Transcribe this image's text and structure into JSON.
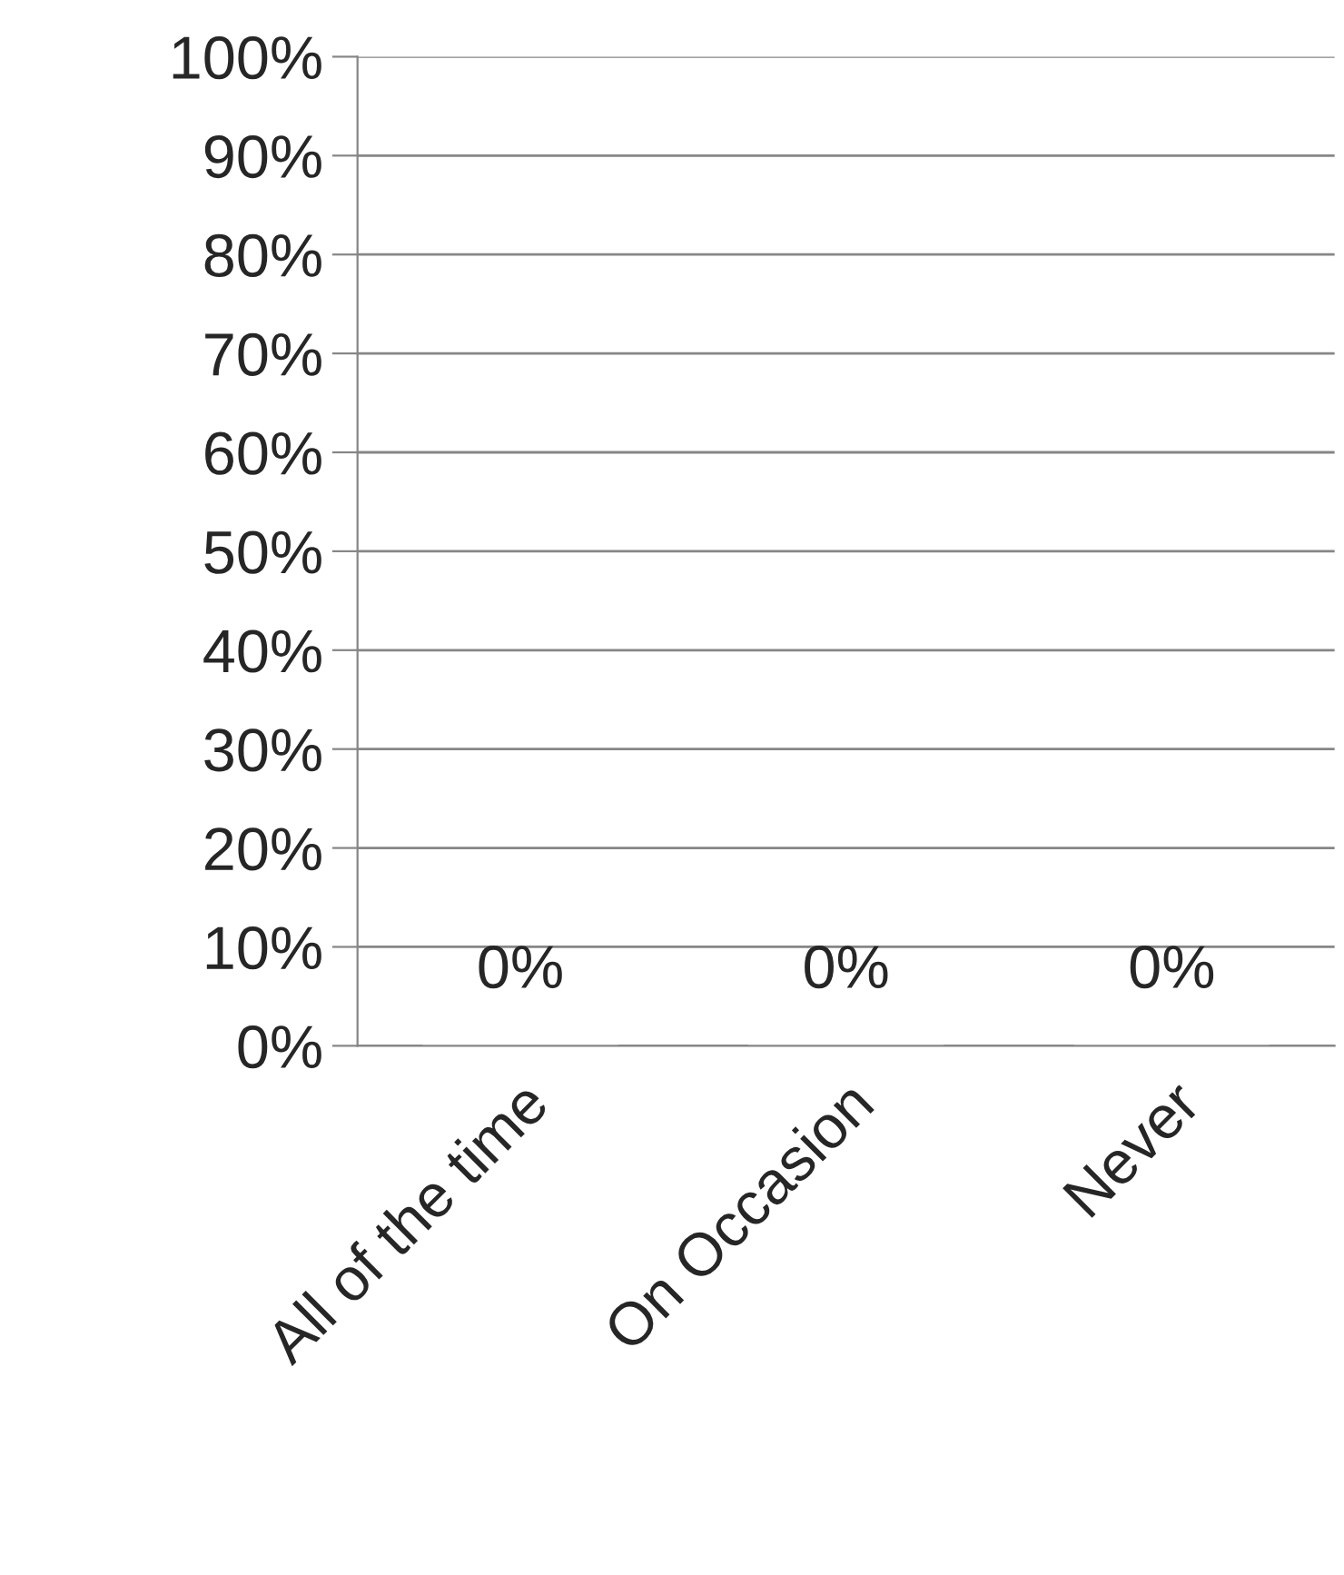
{
  "chart_data": {
    "type": "bar",
    "categories": [
      "All of the time",
      "On Occasion",
      "Never"
    ],
    "values": [
      0,
      0,
      0
    ],
    "value_labels": [
      "0%",
      "0%",
      "0%"
    ],
    "ylim": [
      0,
      100
    ],
    "yticks": [
      {
        "value": 0,
        "label": "0%"
      },
      {
        "value": 10,
        "label": "10%"
      },
      {
        "value": 20,
        "label": "20%"
      },
      {
        "value": 30,
        "label": "30%"
      },
      {
        "value": 40,
        "label": "40%"
      },
      {
        "value": 50,
        "label": "50%"
      },
      {
        "value": 60,
        "label": "60%"
      },
      {
        "value": 70,
        "label": "70%"
      },
      {
        "value": 80,
        "label": "80%"
      },
      {
        "value": 90,
        "label": "90%"
      },
      {
        "value": 100,
        "label": "100%"
      }
    ],
    "grid": "y",
    "legend": false
  }
}
